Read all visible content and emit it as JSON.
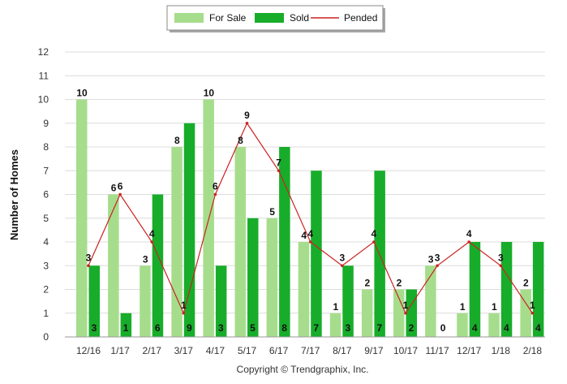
{
  "chart_data": {
    "type": "bar",
    "categories": [
      "12/16",
      "1/17",
      "2/17",
      "3/17",
      "4/17",
      "5/17",
      "6/17",
      "7/17",
      "8/17",
      "9/17",
      "10/17",
      "11/17",
      "12/17",
      "1/18",
      "2/18"
    ],
    "series": [
      {
        "name": "For Sale",
        "type": "bar",
        "color": "#a6dd8c",
        "values": [
          10,
          6,
          3,
          8,
          10,
          8,
          5,
          4,
          1,
          2,
          2,
          3,
          1,
          1,
          2
        ]
      },
      {
        "name": "Sold",
        "type": "bar",
        "color": "#17ad2a",
        "values": [
          3,
          1,
          6,
          9,
          3,
          5,
          8,
          7,
          3,
          7,
          2,
          0,
          4,
          4,
          4
        ]
      },
      {
        "name": "Pended",
        "type": "line",
        "color": "#cc2222",
        "values": [
          3,
          6,
          4,
          1,
          6,
          9,
          7,
          4,
          3,
          4,
          1,
          3,
          4,
          3,
          1
        ]
      }
    ],
    "ylabel": "Number of Homes",
    "xlabel": "",
    "ylim": [
      0,
      12
    ],
    "yticks": [
      0,
      1,
      2,
      3,
      4,
      5,
      6,
      7,
      8,
      9,
      10,
      11,
      12
    ],
    "grid": true,
    "legend_position": "top-center",
    "footer": "Copyright © Trendgraphix, Inc."
  }
}
